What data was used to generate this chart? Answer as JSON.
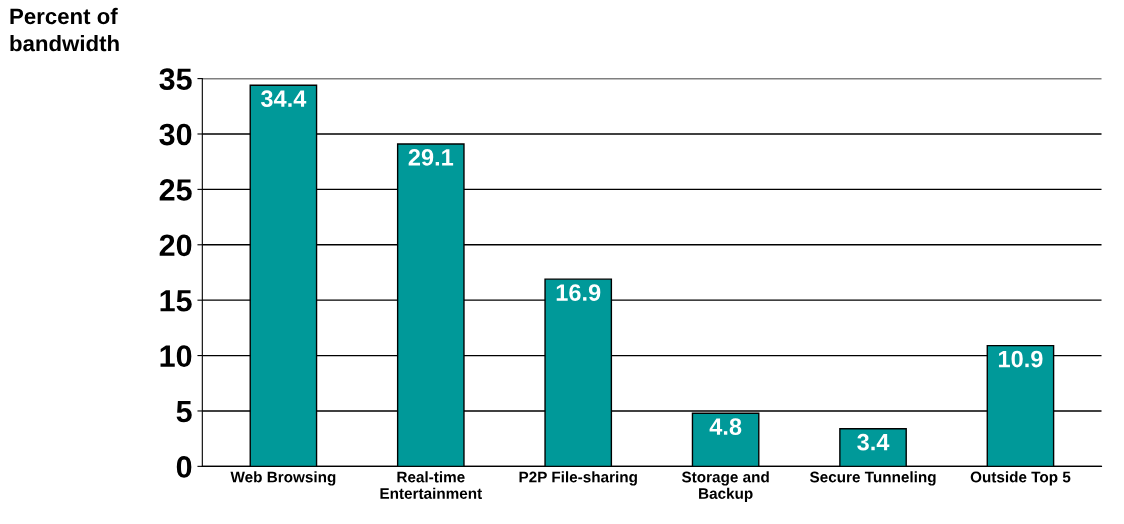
{
  "chart_data": {
    "type": "bar",
    "ylabel": "Percent of\nbandwidth",
    "categories": [
      "Web Browsing",
      "Real-time\nEntertainment",
      "P2P File-sharing",
      "Storage and\nBackup",
      "Secure Tunneling",
      "Outside Top 5"
    ],
    "values": [
      34.4,
      29.1,
      16.9,
      4.8,
      3.4,
      10.9
    ],
    "color": "#009999",
    "ylim": [
      0,
      35
    ],
    "yticks": [
      0,
      5,
      10,
      15,
      20,
      25,
      30,
      35
    ],
    "grid": "y",
    "data_labels": true
  }
}
